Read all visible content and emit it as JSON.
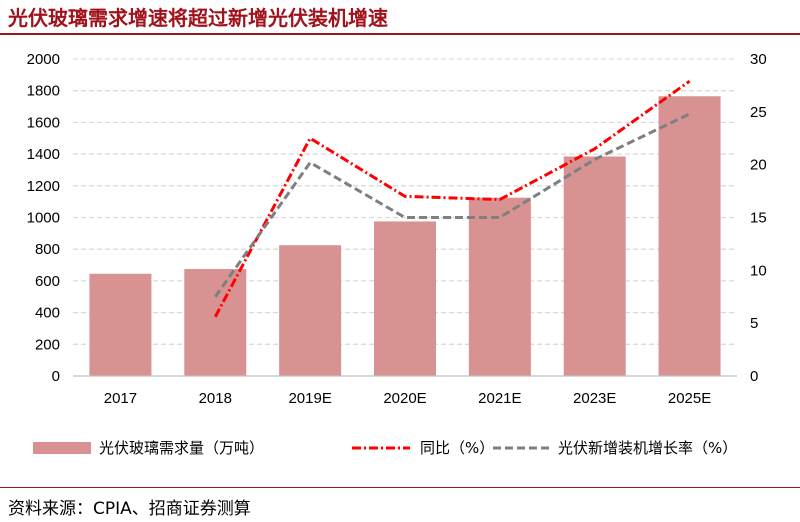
{
  "title": "光伏玻璃需求增速将超过新增光伏装机增速",
  "source": "资料来源：CPIA、招商证券测算",
  "colors": {
    "bar": "#d99292",
    "yoy": "#ff0000",
    "install": "#7f7f7f",
    "accent": "#a0121c",
    "grid": "#d9d9d9"
  },
  "chart_data": {
    "type": "bar",
    "categories": [
      "2017",
      "2018",
      "2019E",
      "2020E",
      "2021E",
      "2023E",
      "2025E"
    ],
    "ylim_left": [
      0,
      2000
    ],
    "yticks_left": [
      "0",
      "200",
      "400",
      "600",
      "800",
      "1000",
      "1200",
      "1400",
      "1600",
      "1800",
      "2000"
    ],
    "ylim_right": [
      0,
      30
    ],
    "yticks_right": [
      "0",
      "5",
      "10",
      "15",
      "20",
      "25",
      "30"
    ],
    "grid": true,
    "legend_position": "bottom",
    "series": [
      {
        "name": "光伏玻璃需求量（万吨）",
        "type": "bar",
        "axis": "left",
        "values": [
          645,
          675,
          825,
          975,
          1125,
          1385,
          1765
        ]
      },
      {
        "name": "同比（%）",
        "type": "line",
        "axis": "right",
        "dash": "dashdot",
        "values": [
          null,
          5.6,
          22.5,
          17,
          16.7,
          21.5,
          27.9
        ]
      },
      {
        "name": "光伏新增装机增长率（%）",
        "type": "line",
        "axis": "right",
        "dash": "dash",
        "values": [
          null,
          7.5,
          20.2,
          15,
          15,
          20.5,
          24.8
        ]
      }
    ]
  }
}
